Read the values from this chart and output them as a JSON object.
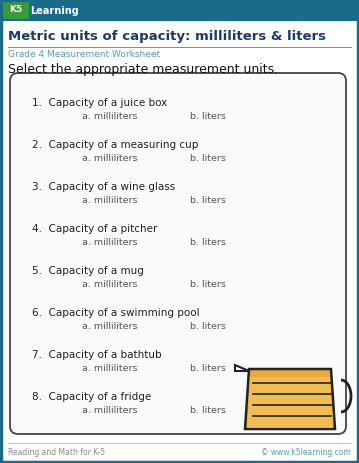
{
  "title": "Metric units of capacity: milliliters & liters",
  "subtitle": "Grade 4 Measurement Worksheet",
  "instruction": "Select the appropriate measurement units.",
  "header_bg": "#1a6b8a",
  "title_color": "#1a3a6b",
  "subtitle_color": "#5a9ab5",
  "instruction_color": "#111111",
  "questions": [
    "Capacity of a juice box",
    "Capacity of a measuring cup",
    "Capacity of a wine glass",
    "Capacity of a pitcher",
    "Capacity of a mug",
    "Capacity of a swimming pool",
    "Capacity of a bathtub",
    "Capacity of a fridge"
  ],
  "choice_a": "a. milliliters",
  "choice_b": "b. liters",
  "box_border_color": "#444444",
  "footer_text": "Reading and Math for K-5",
  "footer_right": "© www.k5learning.com",
  "footer_color": "#888888",
  "bg_color": "#ffffff",
  "outer_border_color": "#1a6b8a",
  "jug_fill": "#e8a83a",
  "jug_body": "#f5c55a",
  "jug_edge": "#222222"
}
